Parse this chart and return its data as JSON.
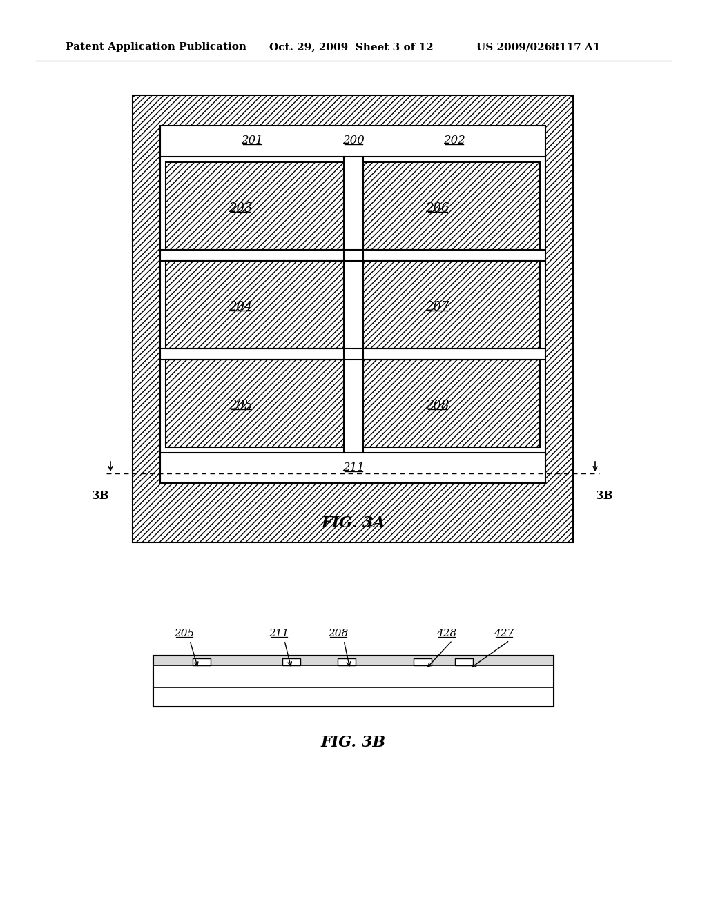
{
  "bg_color": "#ffffff",
  "header_left": "Patent Application Publication",
  "header_mid": "Oct. 29, 2009  Sheet 3 of 12",
  "header_right": "US 2009/0268117 A1",
  "fig3a_label": "FIG. 3A",
  "fig3b_label": "FIG. 3B",
  "cells_3a": [
    {
      "label": "203",
      "col": 0,
      "row": 0
    },
    {
      "label": "204",
      "col": 0,
      "row": 1
    },
    {
      "label": "205",
      "col": 0,
      "row": 2
    },
    {
      "label": "206",
      "col": 1,
      "row": 0
    },
    {
      "label": "207",
      "col": 1,
      "row": 1
    },
    {
      "label": "208",
      "col": 1,
      "row": 2
    }
  ],
  "top_labels": [
    "201",
    "200",
    "202"
  ],
  "bottom_label": "211",
  "side_label": "3B",
  "labels_3b": [
    "205",
    "211",
    "208",
    "428",
    "427"
  ]
}
